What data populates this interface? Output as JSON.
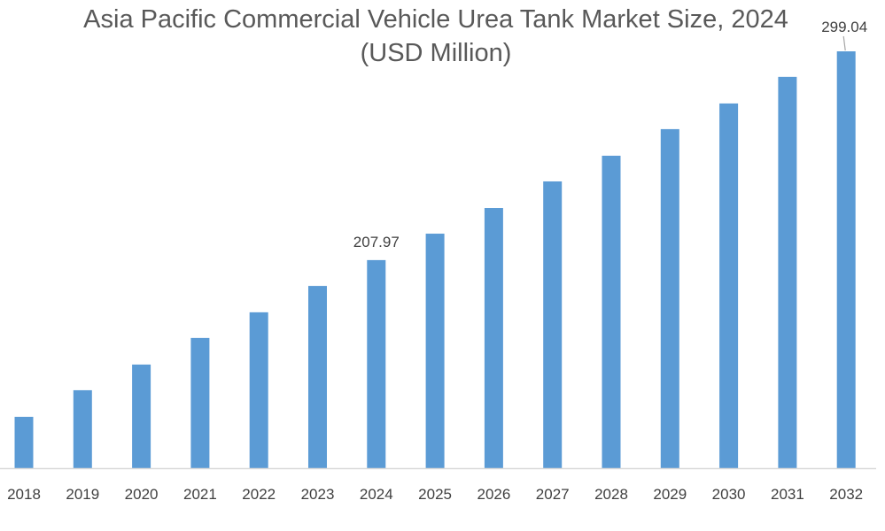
{
  "chart_data": {
    "type": "bar",
    "title": "Asia Pacific Commercial Vehicle Urea Tank Market Size, 2024",
    "subtitle": "(USD Million)",
    "xlabel": "",
    "ylabel": "",
    "categories": [
      "2018",
      "2019",
      "2020",
      "2021",
      "2022",
      "2023",
      "2024",
      "2025",
      "2026",
      "2027",
      "2028",
      "2029",
      "2030",
      "2031",
      "2032"
    ],
    "values": [
      139.6,
      151.2,
      162.4,
      174.0,
      185.2,
      196.7,
      207.97,
      219.5,
      230.7,
      242.3,
      253.5,
      265.1,
      276.3,
      287.9,
      299.04
    ],
    "data_labels": {
      "2024": "207.97",
      "2032": "299.04"
    },
    "ylim": [
      117.2,
      299.04
    ],
    "y_axis_visible": false,
    "grid": false,
    "legend": "none",
    "bar_color": "#5b9bd5"
  }
}
